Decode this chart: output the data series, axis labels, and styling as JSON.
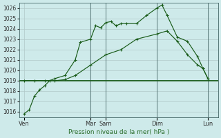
{
  "xlabel": "Pression niveau de la mer( hPa )",
  "background_color": "#ceeaea",
  "grid_color": "#b0c8c8",
  "line_color": "#1a5c1a",
  "ylim": [
    1015.5,
    1026.5
  ],
  "yticks": [
    1016,
    1017,
    1018,
    1019,
    1020,
    1021,
    1022,
    1023,
    1024,
    1025,
    1026
  ],
  "day_labels": [
    "Ven",
    "Mar",
    "Sam",
    "Dim",
    "Lun"
  ],
  "day_positions": [
    0,
    13,
    16,
    26,
    36
  ],
  "xlim": [
    -1,
    38
  ],
  "line1_x": [
    0,
    1,
    2,
    3,
    4,
    5,
    6,
    8,
    10,
    11,
    13,
    14,
    15,
    16,
    17,
    18,
    19,
    20,
    22,
    24,
    26,
    27,
    28,
    30,
    32,
    34,
    35,
    36
  ],
  "line1_y": [
    1015.8,
    1016.2,
    1017.5,
    1018.1,
    1018.5,
    1019.0,
    1019.2,
    1019.5,
    1021.0,
    1022.7,
    1023.0,
    1024.3,
    1024.1,
    1024.6,
    1024.7,
    1024.3,
    1024.5,
    1024.5,
    1024.5,
    1025.3,
    1026.0,
    1026.3,
    1025.3,
    1023.2,
    1022.8,
    1021.3,
    1020.2,
    1019.2
  ],
  "line2_x": [
    0,
    2,
    4,
    6,
    8,
    10,
    13,
    16,
    19,
    22,
    26,
    28,
    30,
    32,
    34,
    35,
    36
  ],
  "line2_y": [
    1019.0,
    1019.0,
    1019.0,
    1019.0,
    1019.1,
    1019.5,
    1020.5,
    1021.5,
    1022.0,
    1023.0,
    1023.5,
    1023.8,
    1022.8,
    1021.5,
    1020.5,
    1020.2,
    1019.2
  ],
  "line3_x": [
    0,
    36
  ],
  "line3_y": [
    1019.0,
    1019.0
  ],
  "vline_positions": [
    13,
    16,
    26,
    36
  ],
  "hline_y": 1019.0
}
